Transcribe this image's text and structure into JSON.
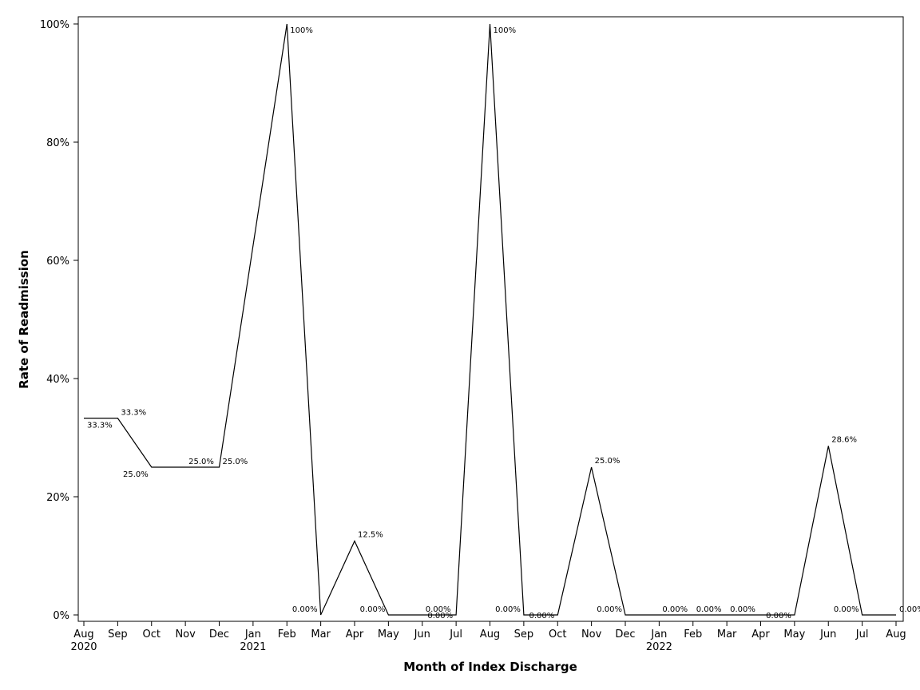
{
  "chart_data": {
    "type": "line",
    "title": "",
    "xlabel": "Month of Index Discharge",
    "ylabel": "Rate of Readmission",
    "ylim": [
      0,
      100
    ],
    "yticks": [
      {
        "value": 0,
        "label": "0%"
      },
      {
        "value": 20,
        "label": "20%"
      },
      {
        "value": 40,
        "label": "40%"
      },
      {
        "value": 60,
        "label": "60%"
      },
      {
        "value": 80,
        "label": "80%"
      },
      {
        "value": 100,
        "label": "100%"
      }
    ],
    "xticks": [
      {
        "month": "Aug",
        "year": "2020"
      },
      {
        "month": "Sep",
        "year": ""
      },
      {
        "month": "Oct",
        "year": ""
      },
      {
        "month": "Nov",
        "year": ""
      },
      {
        "month": "Dec",
        "year": ""
      },
      {
        "month": "Jan",
        "year": "2021"
      },
      {
        "month": "Feb",
        "year": ""
      },
      {
        "month": "Mar",
        "year": ""
      },
      {
        "month": "Apr",
        "year": ""
      },
      {
        "month": "May",
        "year": ""
      },
      {
        "month": "Jun",
        "year": ""
      },
      {
        "month": "Jul",
        "year": ""
      },
      {
        "month": "Aug",
        "year": ""
      },
      {
        "month": "Sep",
        "year": ""
      },
      {
        "month": "Oct",
        "year": ""
      },
      {
        "month": "Nov",
        "year": ""
      },
      {
        "month": "Dec",
        "year": ""
      },
      {
        "month": "Jan",
        "year": "2022"
      },
      {
        "month": "Feb",
        "year": ""
      },
      {
        "month": "Mar",
        "year": ""
      },
      {
        "month": "Apr",
        "year": ""
      },
      {
        "month": "May",
        "year": ""
      },
      {
        "month": "Jun",
        "year": ""
      },
      {
        "month": "Jul",
        "year": ""
      },
      {
        "month": "Aug",
        "year": ""
      }
    ],
    "grid": false,
    "series": [
      {
        "points": [
          {
            "x": "2020-08-01",
            "y": 33.3,
            "label": "33.3%"
          },
          {
            "x": "2020-09-01",
            "y": 33.3,
            "label": "33.3%"
          },
          {
            "x": "2020-10-01",
            "y": 25.0,
            "label": "25.0%"
          },
          {
            "x": "2020-11-01",
            "y": 25.0,
            "label": "25.0%"
          },
          {
            "x": "2020-12-01",
            "y": 25.0,
            "label": "25.0%"
          },
          {
            "x": "2021-02-01",
            "y": 100,
            "label": "100%"
          },
          {
            "x": "2021-03-01",
            "y": 0.0,
            "label": "0.00%"
          },
          {
            "x": "2021-04-01",
            "y": 12.5,
            "label": "12.5%"
          },
          {
            "x": "2021-05-01",
            "y": 0.0,
            "label": "0.00%"
          },
          {
            "x": "2021-06-01",
            "y": 0.0,
            "label": "0.00%"
          },
          {
            "x": "2021-07-01",
            "y": 0.0,
            "label": "0.00%"
          },
          {
            "x": "2021-08-01",
            "y": 100,
            "label": "100%"
          },
          {
            "x": "2021-09-01",
            "y": 0.0,
            "label": "0.00%"
          },
          {
            "x": "2021-10-01",
            "y": 0.0,
            "label": "0.00%"
          },
          {
            "x": "2021-11-01",
            "y": 25.0,
            "label": "25.0%"
          },
          {
            "x": "2021-12-01",
            "y": 0.0,
            "label": "0.00%"
          },
          {
            "x": "2022-01-01",
            "y": 0.0,
            "label": "0.00%"
          },
          {
            "x": "2022-02-01",
            "y": 0.0,
            "label": "0.00%"
          },
          {
            "x": "2022-03-01",
            "y": 0.0,
            "label": "0.00%"
          },
          {
            "x": "2022-05-01",
            "y": 0.0,
            "label": "0.00%"
          },
          {
            "x": "2022-06-01",
            "y": 28.6,
            "label": "28.6%"
          },
          {
            "x": "2022-07-01",
            "y": 0.0,
            "label": "0.00%"
          },
          {
            "x": "2022-08-01",
            "y": 0.0,
            "label": "0.00%"
          }
        ]
      }
    ]
  }
}
